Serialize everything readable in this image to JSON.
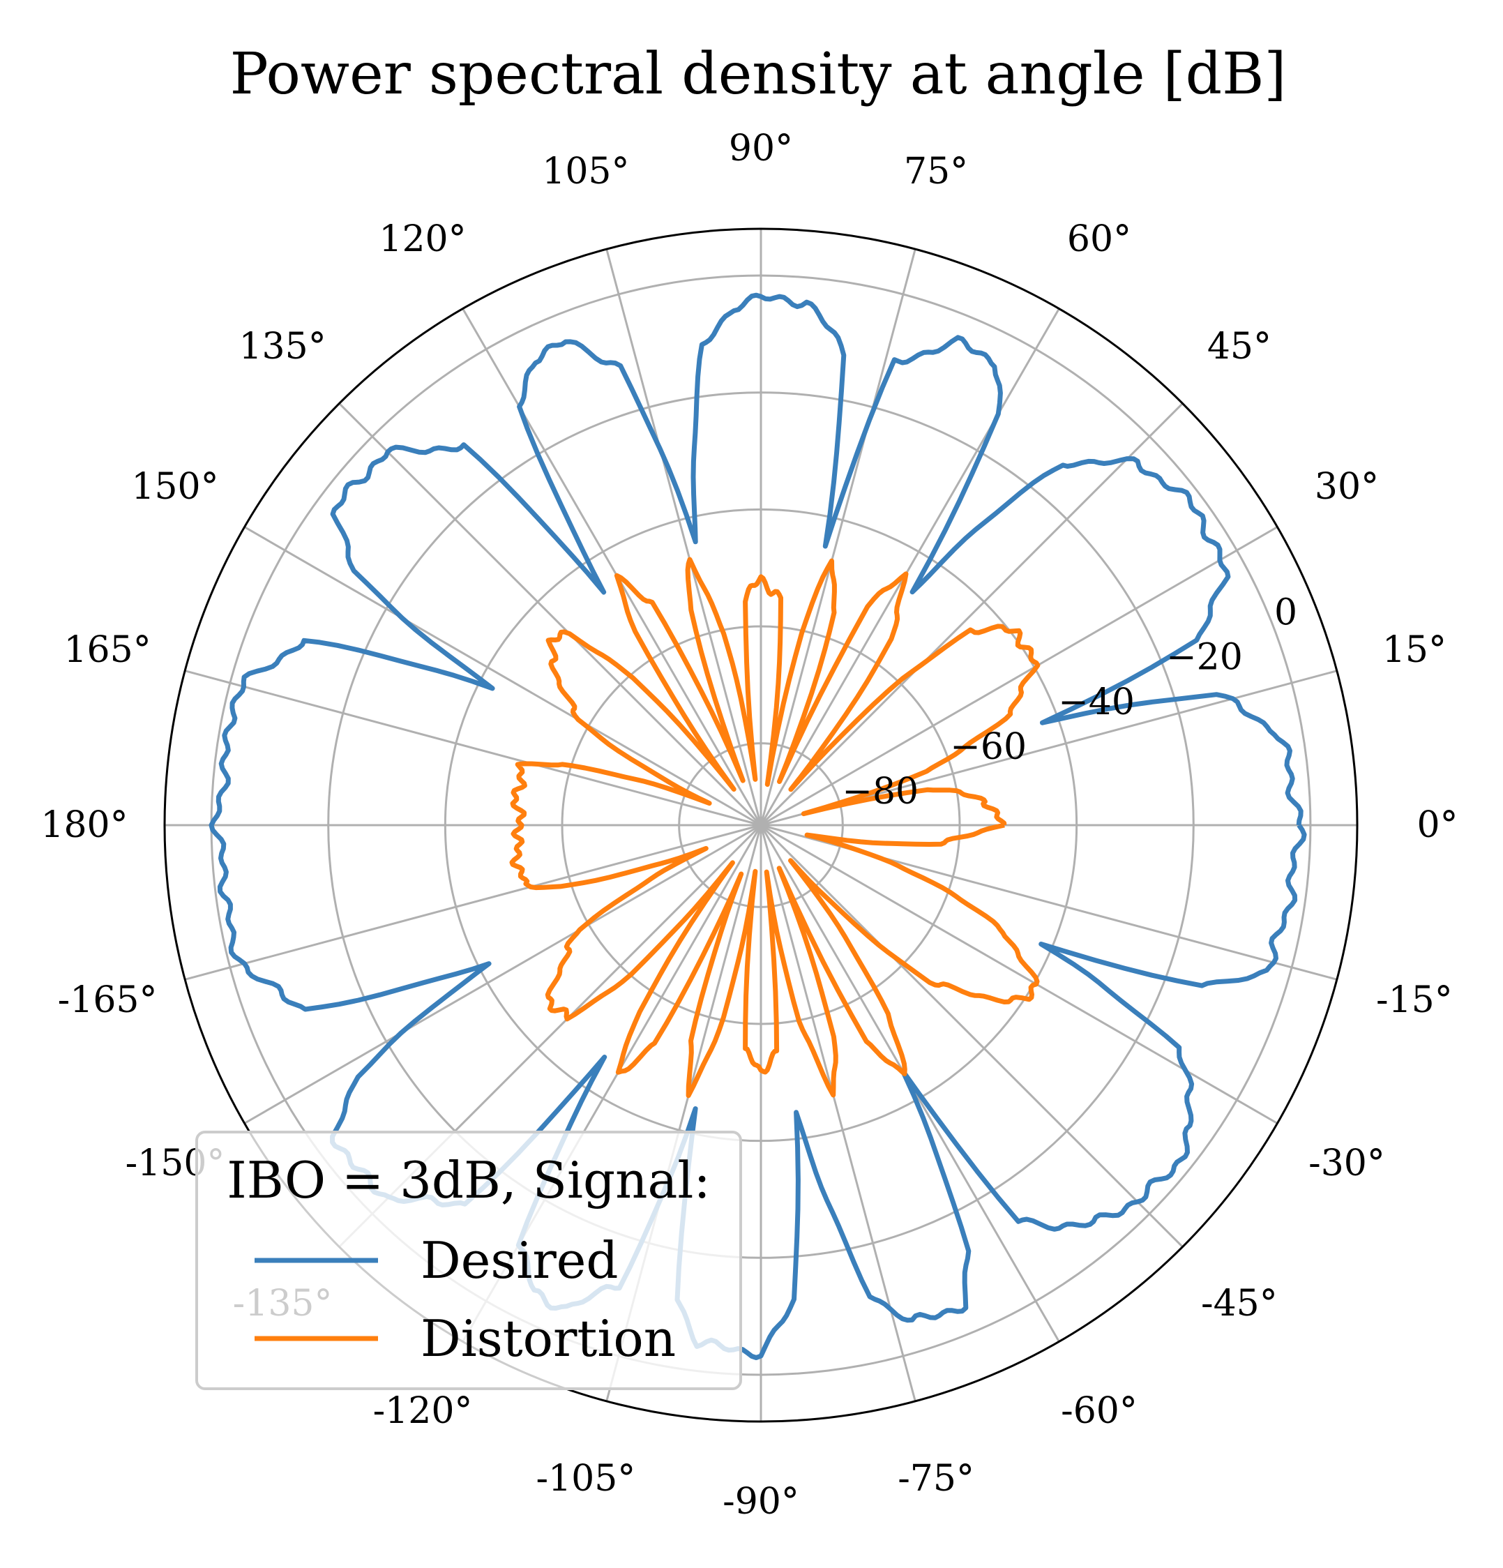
{
  "chart_data": {
    "type": "polar-line",
    "title": "Power spectral density at angle [dB]",
    "angle_unit": "degrees",
    "angle_ticks": [
      0,
      15,
      30,
      45,
      60,
      75,
      90,
      105,
      120,
      135,
      150,
      165,
      180,
      -165,
      -150,
      -135,
      -120,
      -105,
      -90,
      -75,
      -60,
      -45,
      -30,
      -15
    ],
    "angle_tick_labels": [
      "0°",
      "15°",
      "30°",
      "45°",
      "60°",
      "75°",
      "90°",
      "105°",
      "120°",
      "135°",
      "150°",
      "165°",
      "180°",
      "-165°",
      "-150°",
      "-135°",
      "-120°",
      "-105°",
      "-90°",
      "-75°",
      "-60°",
      "-45°",
      "-30°",
      "-15°"
    ],
    "r_ticks": [
      -80,
      -60,
      -40,
      -20,
      0
    ],
    "r_tick_labels": [
      "−80",
      "−60",
      "−40",
      "−20",
      "0"
    ],
    "rlim": [
      -94,
      8
    ],
    "r_label_angle": 22.5,
    "grid": true,
    "legend": {
      "title": "IBO = 3dB, Signal:",
      "placement": "lower-left"
    },
    "colors": {
      "desired": "#3a7fbb",
      "distortion": "#ff7f0e"
    },
    "series": [
      {
        "name": "Desired",
        "angles": [
          0,
          10,
          16,
          20,
          23,
          28,
          35,
          40,
          44,
          50,
          57,
          60,
          63,
          68,
          74,
          77,
          80,
          85,
          90,
          93,
          97,
          103,
          107,
          112,
          116,
          120,
          124,
          128,
          135,
          140,
          144,
          148,
          153,
          158,
          164,
          168,
          172,
          180,
          188,
          192,
          196,
          202,
          207,
          212,
          216,
          220,
          225,
          232,
          236,
          240,
          244,
          248,
          253,
          257,
          260,
          263,
          267,
          270,
          274,
          277,
          283,
          287,
          293,
          296,
          300,
          303,
          310,
          316,
          320,
          325,
          332,
          337,
          340,
          344,
          350,
          360
        ],
        "values": [
          -2,
          -4,
          -13,
          -42,
          -13,
          -4,
          -2,
          -3,
          -5,
          -13,
          -46,
          -13,
          -5,
          -5,
          -12,
          -45,
          -12,
          -4,
          -4,
          -5,
          -12,
          -44,
          -12,
          -5,
          -5,
          -12,
          -46,
          -12,
          -4,
          -3,
          -4,
          -12,
          -42,
          -10,
          -3,
          -1,
          -2,
          -1,
          -2,
          -1,
          -3,
          -10,
          -42,
          -12,
          -4,
          -3,
          -4,
          -12,
          -46,
          -12,
          -5,
          -5,
          -12,
          -44,
          -12,
          -5,
          -4,
          -4,
          -12,
          -45,
          -12,
          -5,
          -5,
          -13,
          -46,
          -13,
          -5,
          -3,
          -2,
          -4,
          -13,
          -42,
          -13,
          -4,
          -3,
          -2
        ]
      },
      {
        "name": "Distortion",
        "angles": [
          0,
          6,
          12,
          15,
          18,
          24,
          30,
          37,
          43,
          46,
          50,
          55,
          60,
          64,
          67,
          71,
          75,
          78,
          81,
          85,
          90,
          94,
          97,
          101,
          105,
          108,
          112,
          116,
          120,
          123,
          127,
          131,
          135,
          139,
          143,
          150,
          157,
          163,
          166,
          170,
          175,
          180,
          185,
          190,
          194,
          197,
          203,
          210,
          217,
          221,
          225,
          229,
          233,
          237,
          240,
          244,
          248,
          252,
          255,
          259,
          263,
          266,
          270,
          274,
          277,
          281,
          285,
          289,
          293,
          296,
          300,
          304,
          310,
          317,
          323,
          327,
          330,
          336,
          342,
          348,
          354,
          360
        ],
        "values": [
          -53,
          -55,
          -64,
          -86,
          -64,
          -48,
          -40,
          -39,
          -45,
          -60,
          -86,
          -55,
          -45,
          -52,
          -86,
          -55,
          -47,
          -60,
          -86,
          -55,
          -52,
          -55,
          -86,
          -60,
          -47,
          -55,
          -86,
          -52,
          -45,
          -55,
          -86,
          -60,
          -48,
          -46,
          -50,
          -58,
          -84,
          -58,
          -52,
          -52,
          -52,
          -53,
          -52,
          -52,
          -52,
          -58,
          -84,
          -58,
          -50,
          -46,
          -48,
          -60,
          -86,
          -55,
          -45,
          -52,
          -86,
          -55,
          -47,
          -60,
          -86,
          -55,
          -52,
          -55,
          -86,
          -60,
          -47,
          -55,
          -86,
          -52,
          -45,
          -55,
          -86,
          -55,
          -45,
          -39,
          -40,
          -48,
          -64,
          -86,
          -64,
          -53
        ]
      }
    ]
  }
}
